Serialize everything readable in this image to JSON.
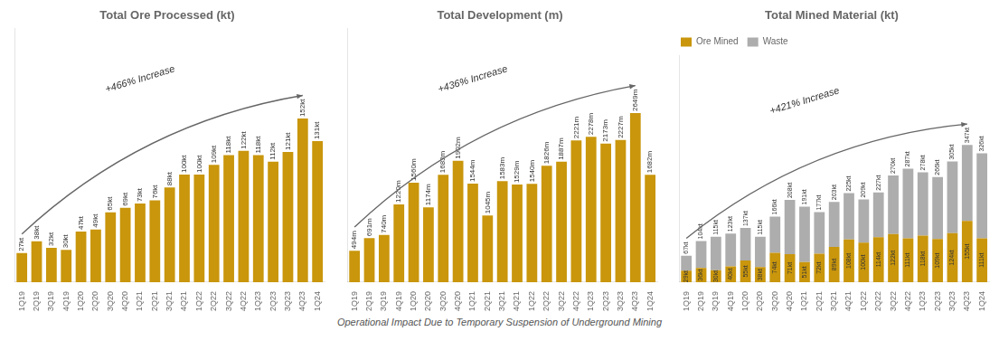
{
  "chart_data": [
    {
      "type": "bar",
      "title": "Total Ore Processed (kt)",
      "categories": [
        "1Q19",
        "2Q19",
        "3Q19",
        "4Q19",
        "1Q20",
        "2Q20",
        "3Q20",
        "4Q20",
        "1Q21",
        "2Q21",
        "3Q21",
        "4Q21",
        "1Q22",
        "2Q22",
        "3Q22",
        "4Q22",
        "1Q23",
        "2Q23",
        "3Q23",
        "4Q23",
        "1Q24"
      ],
      "values": [
        27,
        38,
        32,
        30,
        47,
        49,
        65,
        69,
        73,
        76,
        88,
        100,
        100,
        109,
        118,
        122,
        118,
        112,
        121,
        152,
        131
      ],
      "value_labels": [
        "27kt",
        "38kt",
        "32kt",
        "30kt",
        "47kt",
        "49kt",
        "65kt",
        "69kt",
        "73kt",
        "76kt",
        "88kt",
        "100kt",
        "100kt",
        "109kt",
        "118kt",
        "122kt",
        "118kt",
        "112kt",
        "121kt",
        "152kt",
        "131kt"
      ],
      "data_labels": true,
      "color": "#C9960C",
      "ylim": [
        0,
        235.6
      ],
      "grid": false,
      "tick_labels": "x",
      "annotations": [
        "+466% Increase"
      ]
    },
    {
      "type": "bar",
      "title": "Total Development (m)",
      "categories": [
        "1Q19",
        "2Q19",
        "3Q19",
        "4Q19",
        "1Q20",
        "2Q20",
        "3Q20",
        "4Q20",
        "1Q21",
        "2Q21",
        "3Q21",
        "4Q21",
        "1Q22",
        "2Q22",
        "3Q22",
        "4Q22",
        "1Q23",
        "2Q23",
        "3Q23",
        "4Q23",
        "1Q24"
      ],
      "values": [
        494,
        691,
        740,
        1220,
        1560,
        1174,
        1683,
        1902,
        1544,
        1045,
        1583,
        1529,
        1540,
        1826,
        1887,
        2221,
        2278,
        2173,
        2227,
        2649,
        1682
      ],
      "value_labels": [
        "494m",
        "691m",
        "740m",
        "1220m",
        "1560m",
        "1174m",
        "1683m",
        "1902m",
        "1544m",
        "1045m",
        "1583m",
        "1529m",
        "1540m",
        "1826m",
        "1887m",
        "2221m",
        "2278m",
        "2173m",
        "2227m",
        "2649m",
        "1682m"
      ],
      "data_labels": true,
      "color": "#C9960C",
      "ylim": [
        0,
        3973.5
      ],
      "grid": false,
      "tick_labels": "x",
      "annotations": [
        "+436% Increase"
      ]
    },
    {
      "type": "bar",
      "title": "Total Mined Material (kt)",
      "categories": [
        "1Q19",
        "2Q19",
        "3Q19",
        "4Q19",
        "1Q20",
        "2Q20",
        "3Q20",
        "4Q20",
        "1Q21",
        "2Q21",
        "3Q21",
        "4Q21",
        "1Q22",
        "2Q22",
        "3Q22",
        "4Q22",
        "1Q23",
        "2Q23",
        "3Q23",
        "4Q23",
        "1Q24"
      ],
      "series": [
        {
          "name": "Ore Mined",
          "color": "#C9960C",
          "values": [
            29,
            36,
            30,
            40,
            55,
            38,
            74,
            71,
            51,
            72,
            89,
            108,
            100,
            114,
            122,
            111,
            118,
            109,
            124,
            155,
            111
          ],
          "value_labels": [
            "29kt",
            "36kt",
            "30kt",
            "40kt",
            "55kt",
            "38kt",
            "74kt",
            "71kt",
            "51kt",
            "72kt",
            "89kt",
            "108kt",
            "100kt",
            "114kt",
            "122kt",
            "111kt",
            "118kt",
            "109kt",
            "124kt",
            "155kt",
            "111kt"
          ],
          "data_labels": true
        },
        {
          "name": "Waste",
          "color": "#ADADAD",
          "values": [
            38,
            68,
            85,
            83,
            82,
            77,
            92,
            137,
            140,
            105,
            114,
            117,
            109,
            113,
            148,
            176,
            160,
            157,
            181,
            192,
            215
          ]
        }
      ],
      "totals": [
        67,
        104,
        115,
        123,
        137,
        115,
        166,
        208,
        191,
        177,
        203,
        225,
        209,
        227,
        270,
        287,
        278,
        266,
        305,
        347,
        326
      ],
      "total_labels": [
        "67kt",
        "104kt",
        "115kt",
        "123kt",
        "137kt",
        "115kt",
        "166kt",
        "208kt",
        "191kt",
        "177kt",
        "203kt",
        "225kt",
        "209kt",
        "227kt",
        "270kt",
        "287kt",
        "278kt",
        "266kt",
        "305kt",
        "347kt",
        "326kt"
      ],
      "stacked": true,
      "legend": "upper left",
      "ylim": [
        0,
        572.55
      ],
      "grid": false,
      "tick_labels": "x",
      "annotations": [
        "+421% Increase"
      ]
    }
  ],
  "footnote": "Operational Impact Due to Temporary Suspension of Underground Mining"
}
